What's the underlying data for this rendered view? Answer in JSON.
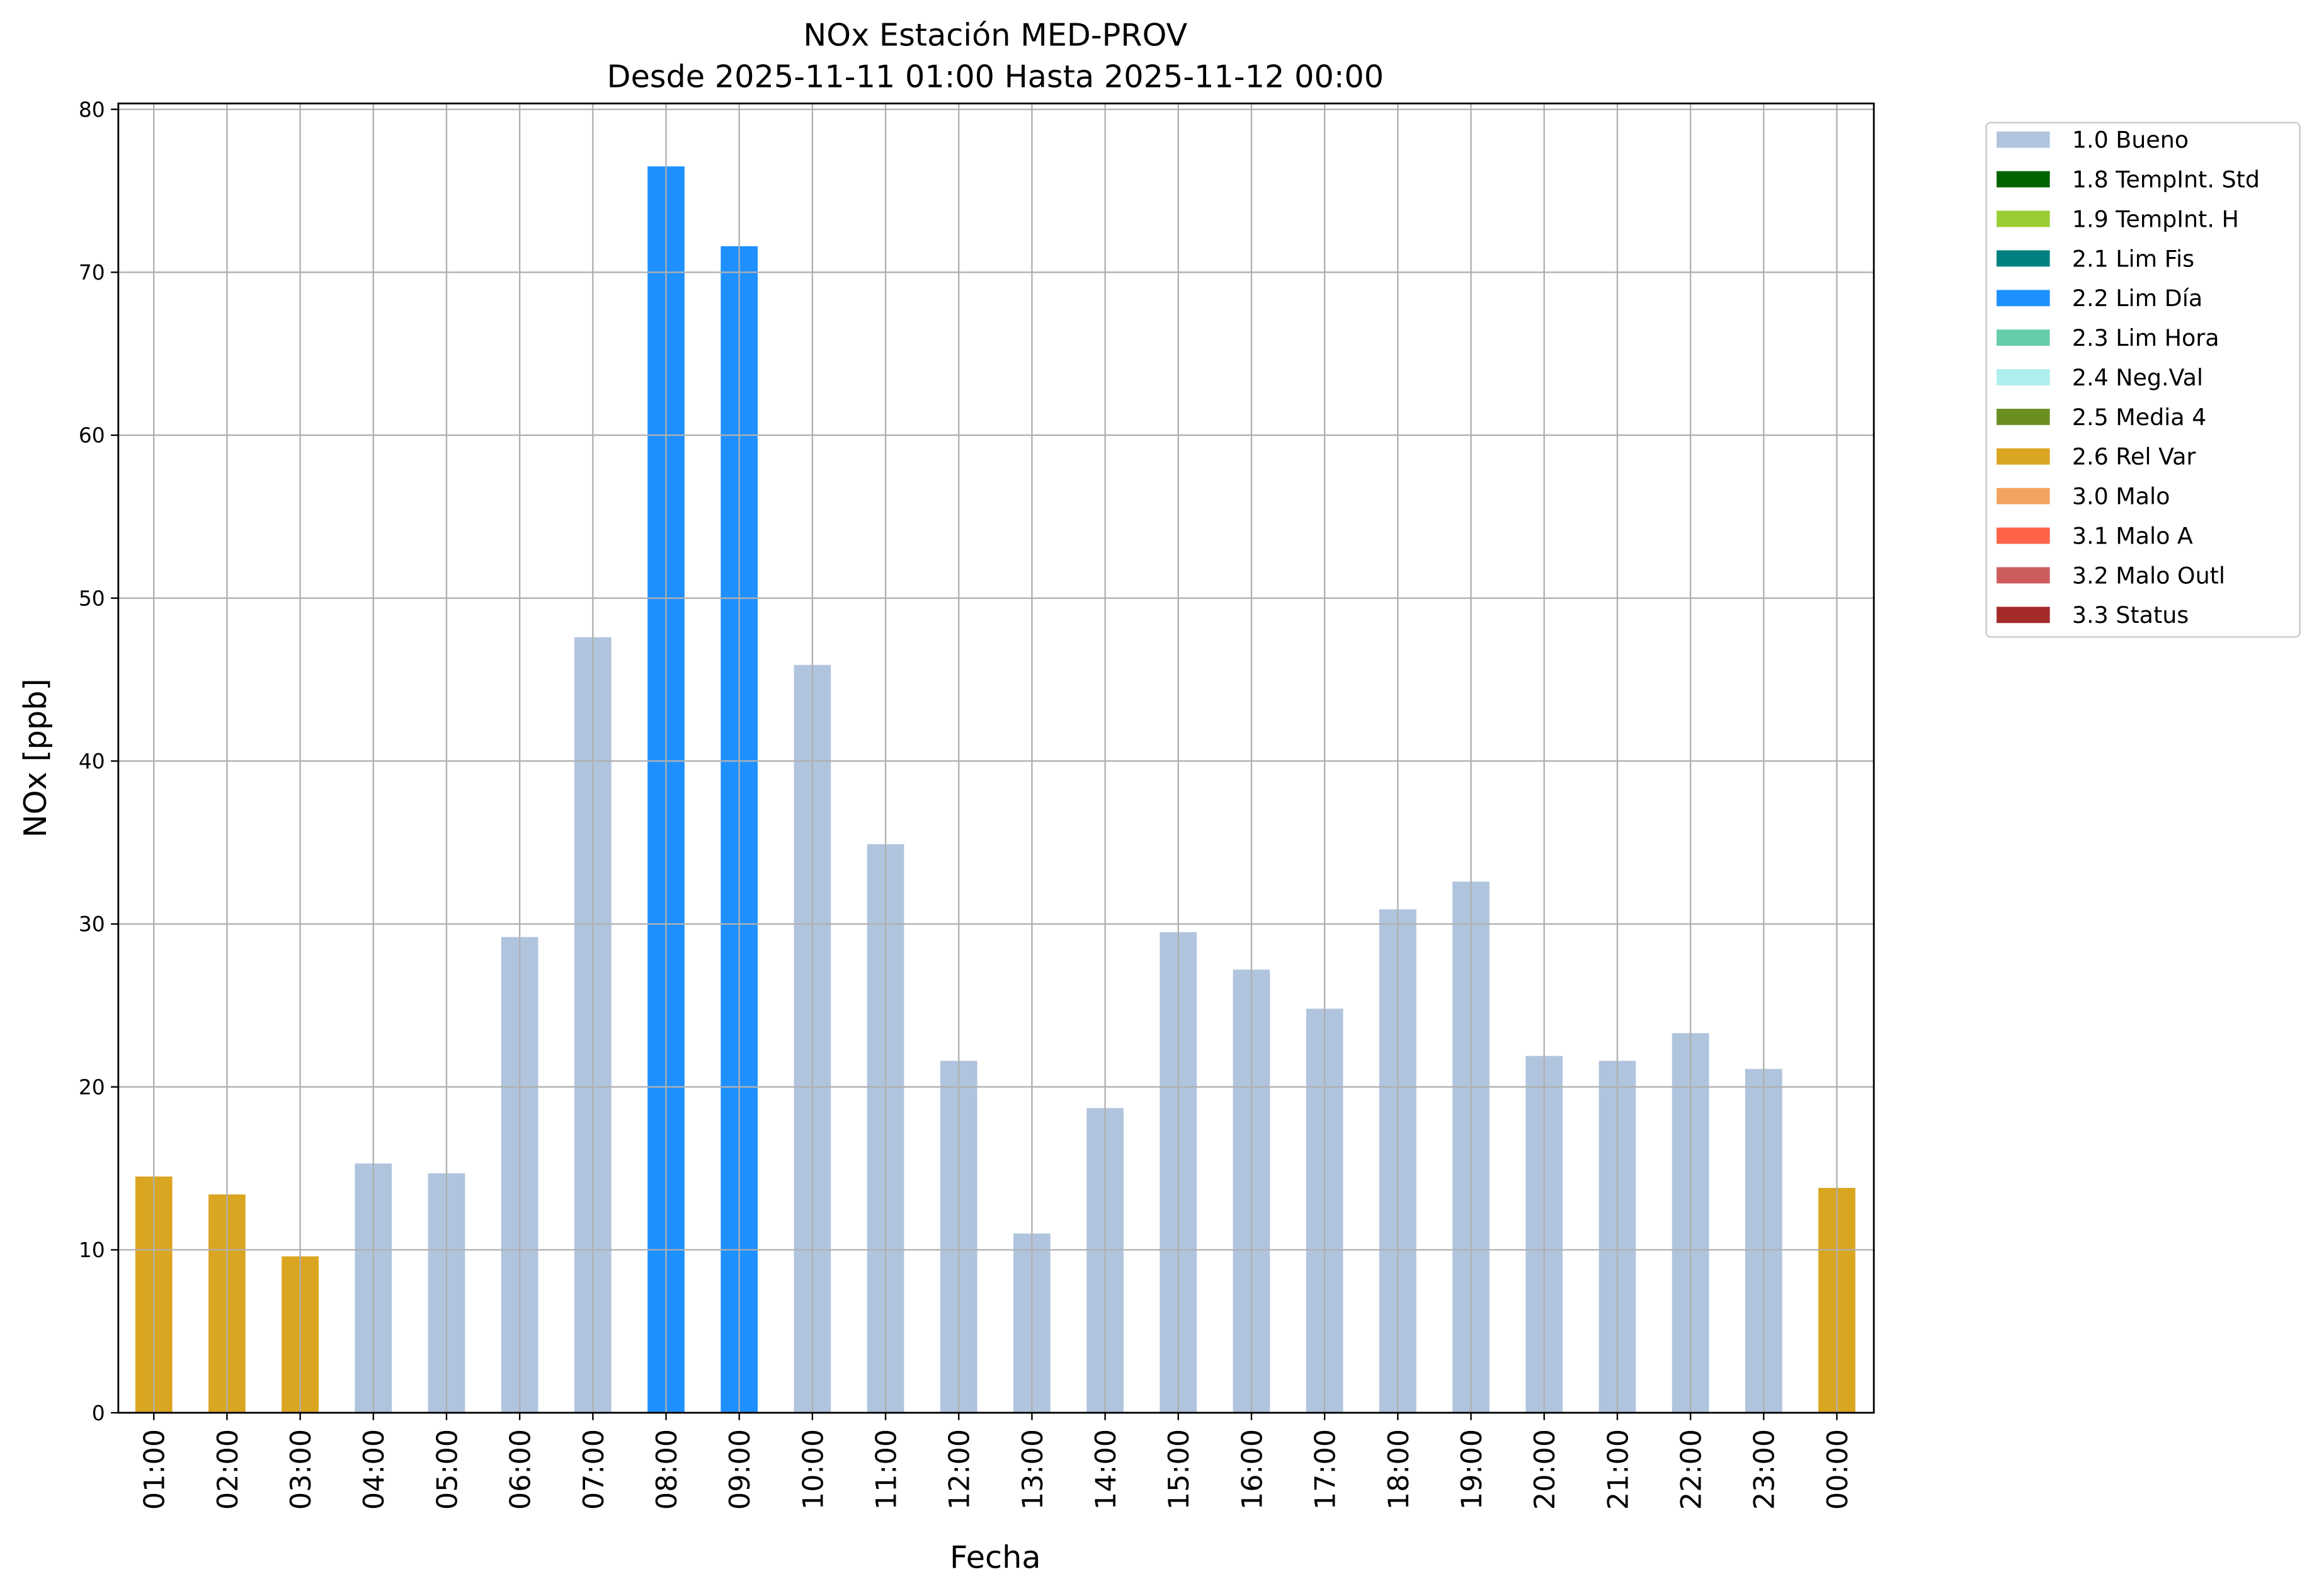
{
  "chart_data": {
    "type": "bar",
    "title": "NOx Estación MED-PROV",
    "subtitle": "Desde 2025-11-11 01:00 Hasta 2025-11-12 00:00",
    "xlabel": "Fecha",
    "ylabel": "NOx [ppb]",
    "ylim": [
      0,
      80
    ],
    "yticks": [
      0,
      10,
      20,
      30,
      40,
      50,
      60,
      70,
      80
    ],
    "grid": true,
    "legend_position": "outside-top-right",
    "categories": [
      "01:00",
      "02:00",
      "03:00",
      "04:00",
      "05:00",
      "06:00",
      "07:00",
      "08:00",
      "09:00",
      "10:00",
      "11:00",
      "12:00",
      "13:00",
      "14:00",
      "15:00",
      "16:00",
      "17:00",
      "18:00",
      "19:00",
      "20:00",
      "21:00",
      "22:00",
      "23:00",
      "00:00"
    ],
    "values": [
      14.5,
      13.4,
      9.6,
      15.3,
      14.7,
      29.2,
      47.6,
      76.5,
      71.6,
      45.9,
      34.9,
      21.6,
      11.0,
      18.7,
      29.5,
      27.2,
      24.8,
      30.9,
      32.6,
      21.9,
      21.6,
      23.3,
      21.1,
      13.8
    ],
    "flags": [
      "2.6 Rel Var",
      "2.6 Rel Var",
      "2.6 Rel Var",
      "1.0 Bueno",
      "1.0 Bueno",
      "1.0 Bueno",
      "1.0 Bueno",
      "2.2 Lim Día",
      "2.2 Lim Día",
      "1.0 Bueno",
      "1.0 Bueno",
      "1.0 Bueno",
      "1.0 Bueno",
      "1.0 Bueno",
      "1.0 Bueno",
      "1.0 Bueno",
      "1.0 Bueno",
      "1.0 Bueno",
      "1.0 Bueno",
      "1.0 Bueno",
      "1.0 Bueno",
      "1.0 Bueno",
      "1.0 Bueno",
      "2.6 Rel Var"
    ],
    "legend": [
      {
        "label": "1.0 Bueno",
        "color": "#B0C4DE"
      },
      {
        "label": "1.8 TempInt. Std",
        "color": "#006400"
      },
      {
        "label": "1.9 TempInt. H",
        "color": "#9ACD32"
      },
      {
        "label": "2.1 Lim Fis",
        "color": "#008080"
      },
      {
        "label": "2.2 Lim Día",
        "color": "#1E90FF"
      },
      {
        "label": "2.3 Lim Hora",
        "color": "#66CDAA"
      },
      {
        "label": "2.4 Neg.Val",
        "color": "#AFEEEE"
      },
      {
        "label": "2.5 Media 4",
        "color": "#6B8E23"
      },
      {
        "label": "2.6 Rel Var",
        "color": "#DAA520"
      },
      {
        "label": "3.0 Malo",
        "color": "#F4A460"
      },
      {
        "label": "3.1 Malo A",
        "color": "#FF6347"
      },
      {
        "label": "3.2 Malo Outl",
        "color": "#CD5C5C"
      },
      {
        "label": "3.3 Status",
        "color": "#A52A2A"
      }
    ]
  }
}
